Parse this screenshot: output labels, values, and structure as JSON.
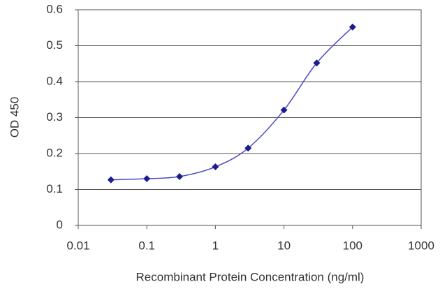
{
  "chart_data": {
    "type": "line",
    "x_label": "Recombinant Protein Concentration (ng/ml)",
    "y_label": "OD 450",
    "x": [
      0.03,
      0.1,
      0.3,
      1,
      3,
      10,
      30,
      100
    ],
    "series": [
      {
        "color": "#1c1c8f",
        "values": [
          0.127,
          0.13,
          0.136,
          0.163,
          0.215,
          0.321,
          0.452,
          0.552
        ]
      }
    ],
    "xscale": "log",
    "xlim": [
      0.01,
      1000
    ],
    "xticks": [
      0.01,
      0.1,
      1,
      10,
      100,
      1000
    ],
    "ylim": [
      0,
      0.6
    ],
    "yticks": [
      0,
      0.1,
      0.2,
      0.3,
      0.4,
      0.5,
      0.6
    ],
    "grid": true
  }
}
